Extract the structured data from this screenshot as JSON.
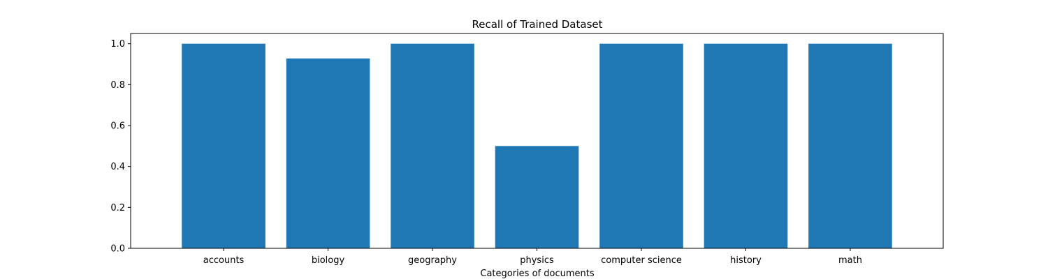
{
  "chart_data": {
    "type": "bar",
    "title": "Recall of Trained Dataset",
    "xlabel": "Categories of documents",
    "ylabel": "",
    "categories": [
      "accounts",
      "biology",
      "geography",
      "physics",
      "computer science",
      "history",
      "math"
    ],
    "values": [
      1.0,
      0.928,
      1.0,
      0.5,
      1.0,
      1.0,
      1.0
    ],
    "ylim": [
      0,
      1.05
    ],
    "yticks": [
      0.0,
      0.2,
      0.4,
      0.6,
      0.8,
      1.0
    ],
    "ytick_labels": [
      "0.0",
      "0.2",
      "0.4",
      "0.6",
      "0.8",
      "1.0"
    ],
    "bar_color": "#1f77b4",
    "grid": false,
    "legend": "none"
  }
}
